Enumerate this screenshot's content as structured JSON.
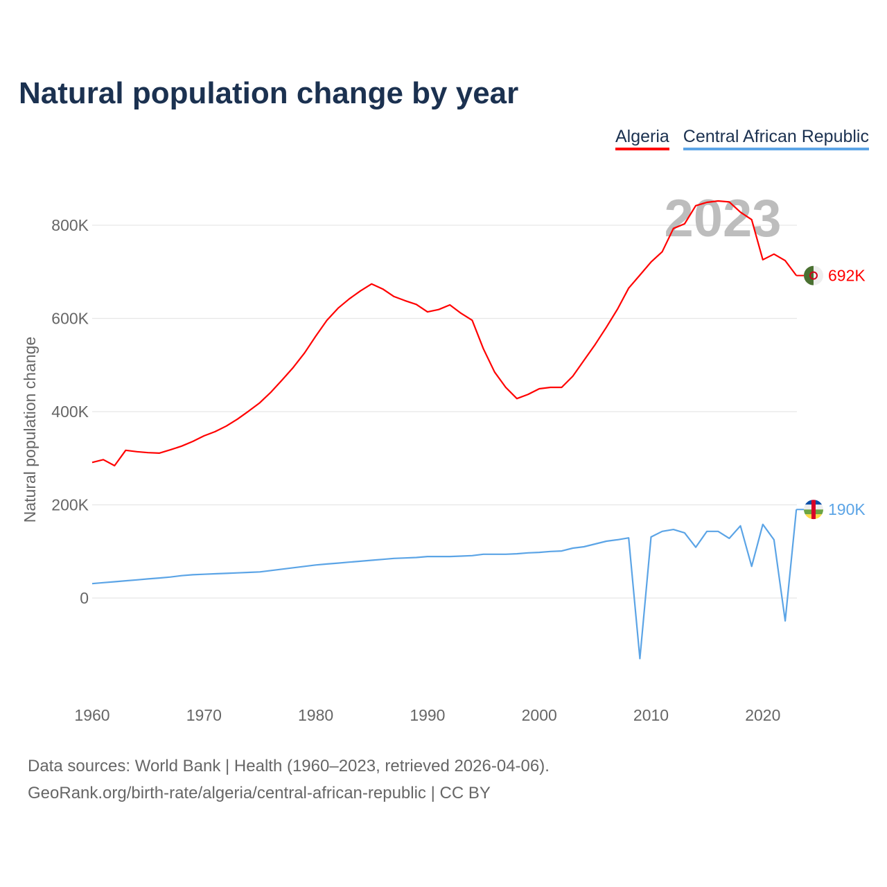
{
  "title": "Natural population change by year",
  "year_label": "2023",
  "footer": {
    "line1": "Data sources: World Bank | Health (1960–2023, retrieved 2026-04-06).",
    "line2": "GeoRank.org/birth-rate/algeria/central-african-republic | CC BY"
  },
  "chart_data": {
    "type": "line",
    "title": "Natural population change by year",
    "xlabel": "",
    "ylabel": "Natural population change",
    "xlim": [
      1960,
      2023
    ],
    "ylim": [
      -150,
      900
    ],
    "grid": true,
    "legend_position": "top-right",
    "x_ticks": [
      "1960",
      "1970",
      "1980",
      "1990",
      "2000",
      "2010",
      "2020"
    ],
    "y_ticks": [
      {
        "v": 0,
        "label": "0"
      },
      {
        "v": 200,
        "label": "200K"
      },
      {
        "v": 400,
        "label": "400K"
      },
      {
        "v": 600,
        "label": "600K"
      },
      {
        "v": 800,
        "label": "800K"
      }
    ],
    "units": "thousands",
    "series": [
      {
        "name": "Algeria",
        "color": "#ff0000",
        "end_label": "692K",
        "flag": "algeria-flag-icon",
        "values": [
          291,
          297,
          284,
          317,
          314,
          312,
          311,
          318,
          326,
          336,
          348,
          357,
          369,
          384,
          401,
          419,
          442,
          468,
          495,
          526,
          562,
          596,
          622,
          642,
          659,
          674,
          663,
          647,
          638,
          630,
          614,
          619,
          629,
          611,
          596,
          535,
          485,
          452,
          428,
          437,
          449,
          452,
          452,
          476,
          510,
          544,
          581,
          620,
          665,
          693,
          721,
          743,
          793,
          803,
          842,
          849,
          852,
          850,
          828,
          812,
          726,
          738,
          724,
          692
        ]
      },
      {
        "name": "Central African Republic",
        "color": "#5ba4e6",
        "end_label": "190K",
        "flag": "central-african-republic-flag-icon",
        "values": [
          31,
          33,
          35,
          37,
          39,
          41,
          43,
          45,
          48,
          50,
          51,
          52,
          53,
          54,
          55,
          56,
          59,
          62,
          65,
          68,
          71,
          73,
          75,
          77,
          79,
          81,
          83,
          85,
          86,
          87,
          89,
          89,
          89,
          90,
          91,
          94,
          94,
          94,
          95,
          97,
          98,
          100,
          101,
          107,
          110,
          116,
          122,
          125,
          129,
          -130,
          131,
          143,
          147,
          140,
          109,
          143,
          143,
          128,
          155,
          68,
          158,
          125,
          -49,
          190
        ]
      }
    ]
  }
}
